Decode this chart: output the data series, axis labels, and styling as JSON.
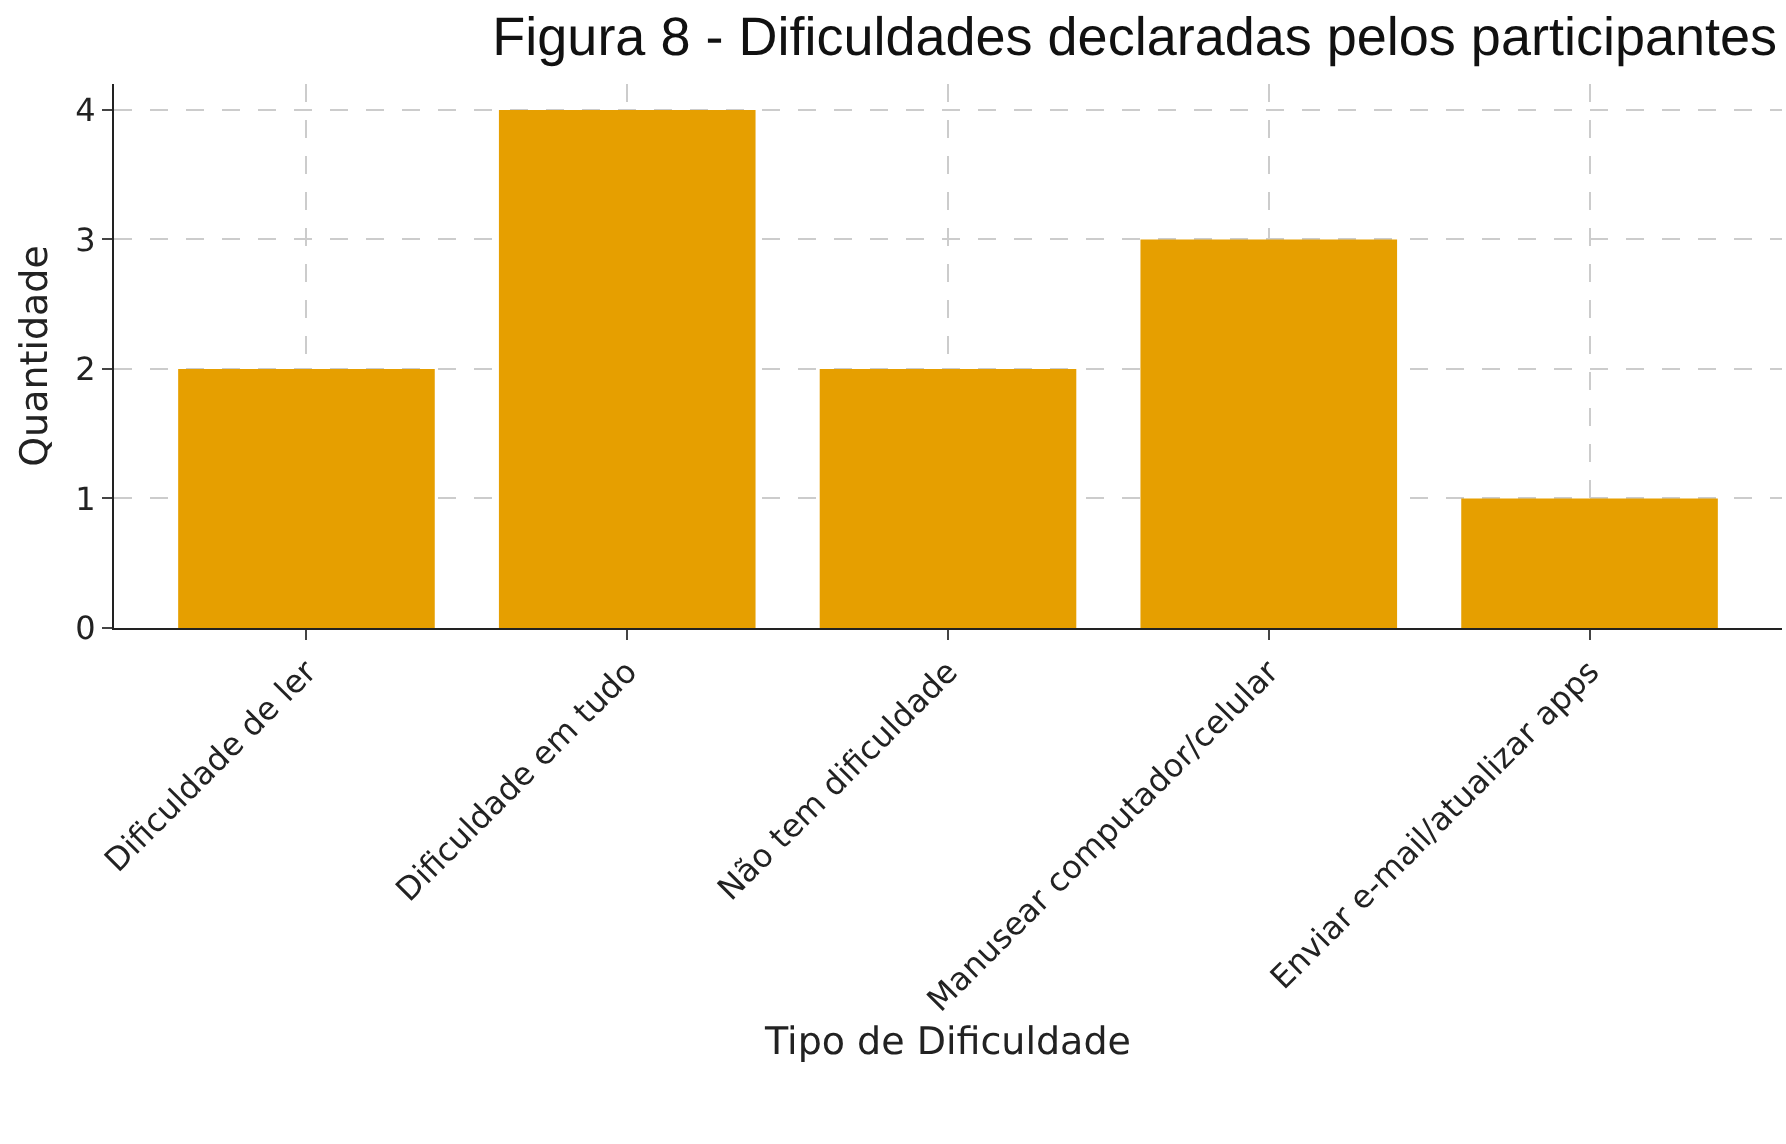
{
  "chart_data": {
    "type": "bar",
    "title": "Figura 8 - Dificuldades declaradas pelos participantes",
    "xlabel": "Tipo de Dificuldade",
    "ylabel": "Quantidade",
    "categories": [
      "Dificuldade de ler",
      "Dificuldade em tudo",
      "Não tem dificuldade",
      "Manusear computador/celular",
      "Enviar e-mail/atualizar apps"
    ],
    "values": [
      2,
      4,
      2,
      3,
      1
    ],
    "color": "#e69f00",
    "ylim": [
      0,
      4.2
    ],
    "yticks": [
      0,
      1,
      2,
      3,
      4
    ],
    "grid": true
  }
}
